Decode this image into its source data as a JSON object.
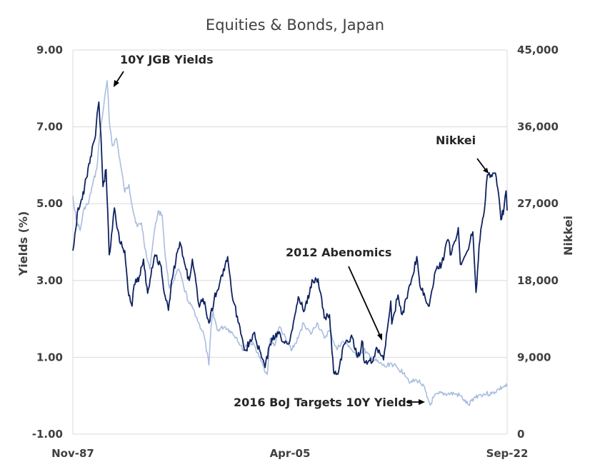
{
  "chart_data": {
    "type": "line",
    "title": "Equities & Bonds, Japan",
    "ylabel": "Yields  (%)",
    "y2label": "Nikkei",
    "ylim": [
      -1,
      9
    ],
    "y2lim": [
      0,
      45000
    ],
    "xlim": [
      "1987-11",
      "2022-09"
    ],
    "y_ticks": [
      "-1.00",
      "1.00",
      "3.00",
      "5.00",
      "7.00",
      "9.00"
    ],
    "y2_ticks": [
      "0",
      "9,000",
      "18,000",
      "27,000",
      "36,000",
      "45,000"
    ],
    "x_ticks": [
      "Nov-87",
      "Apr-05",
      "Sep-22"
    ],
    "grid": true,
    "colors": {
      "jgb": "#a9bde0",
      "nikkei": "#0e2260"
    },
    "series": [
      {
        "name": "10Y JGB Yields",
        "axis": "left",
        "points": [
          [
            "1987-11",
            5.2
          ],
          [
            "1988-02",
            4.6
          ],
          [
            "1988-06",
            4.3
          ],
          [
            "1988-10",
            4.9
          ],
          [
            "1989-02",
            5.0
          ],
          [
            "1989-06",
            5.5
          ],
          [
            "1989-10",
            5.9
          ],
          [
            "1990-01",
            6.8
          ],
          [
            "1990-04",
            7.4
          ],
          [
            "1990-08",
            8.2
          ],
          [
            "1990-10",
            7.2
          ],
          [
            "1991-01",
            6.5
          ],
          [
            "1991-05",
            6.7
          ],
          [
            "1991-09",
            6.0
          ],
          [
            "1992-01",
            5.3
          ],
          [
            "1992-05",
            5.5
          ],
          [
            "1992-09",
            4.8
          ],
          [
            "1993-01",
            4.4
          ],
          [
            "1993-05",
            4.5
          ],
          [
            "1993-10",
            3.6
          ],
          [
            "1994-01",
            3.3
          ],
          [
            "1994-05",
            4.2
          ],
          [
            "1994-09",
            4.8
          ],
          [
            "1995-01",
            4.7
          ],
          [
            "1995-04",
            3.6
          ],
          [
            "1995-08",
            2.8
          ],
          [
            "1995-12",
            3.0
          ],
          [
            "1996-05",
            3.3
          ],
          [
            "1996-10",
            2.8
          ],
          [
            "1997-03",
            2.4
          ],
          [
            "1997-08",
            2.2
          ],
          [
            "1997-12",
            1.9
          ],
          [
            "1998-05",
            1.6
          ],
          [
            "1998-10",
            0.8
          ],
          [
            "1998-12",
            1.8
          ],
          [
            "1999-02",
            2.2
          ],
          [
            "1999-06",
            1.7
          ],
          [
            "2000-01",
            1.8
          ],
          [
            "2000-06",
            1.7
          ],
          [
            "2001-01",
            1.5
          ],
          [
            "2001-06",
            1.2
          ],
          [
            "2002-01",
            1.4
          ],
          [
            "2002-06",
            1.3
          ],
          [
            "2002-12",
            0.9
          ],
          [
            "2003-06",
            0.55
          ],
          [
            "2003-09",
            1.5
          ],
          [
            "2004-01",
            1.3
          ],
          [
            "2004-06",
            1.8
          ],
          [
            "2005-01",
            1.4
          ],
          [
            "2005-06",
            1.2
          ],
          [
            "2005-12",
            1.5
          ],
          [
            "2006-05",
            1.9
          ],
          [
            "2006-12",
            1.6
          ],
          [
            "2007-06",
            1.9
          ],
          [
            "2008-01",
            1.5
          ],
          [
            "2008-06",
            1.7
          ],
          [
            "2009-01",
            1.2
          ],
          [
            "2009-06",
            1.4
          ],
          [
            "2010-01",
            1.3
          ],
          [
            "2010-08",
            1.0
          ],
          [
            "2011-03",
            1.2
          ],
          [
            "2011-09",
            1.0
          ],
          [
            "2012-06",
            0.85
          ],
          [
            "2012-12",
            0.75
          ],
          [
            "2013-05",
            0.85
          ],
          [
            "2013-12",
            0.7
          ],
          [
            "2014-06",
            0.6
          ],
          [
            "2014-12",
            0.35
          ],
          [
            "2015-06",
            0.4
          ],
          [
            "2015-12",
            0.3
          ],
          [
            "2016-04",
            -0.05
          ],
          [
            "2016-07",
            -0.25
          ],
          [
            "2016-10",
            -0.05
          ],
          [
            "2017-03",
            0.05
          ],
          [
            "2017-12",
            0.05
          ],
          [
            "2018-06",
            0.05
          ],
          [
            "2018-12",
            0.0
          ],
          [
            "2019-03",
            -0.1
          ],
          [
            "2019-08",
            -0.25
          ],
          [
            "2020-01",
            -0.05
          ],
          [
            "2020-06",
            0.02
          ],
          [
            "2021-01",
            0.05
          ],
          [
            "2021-06",
            0.05
          ],
          [
            "2022-01",
            0.17
          ],
          [
            "2022-06",
            0.24
          ],
          [
            "2022-09",
            0.25
          ]
        ]
      },
      {
        "name": "Nikkei",
        "axis": "right",
        "points": [
          [
            "1987-11",
            21500
          ],
          [
            "1988-01",
            23500
          ],
          [
            "1988-04",
            26500
          ],
          [
            "1988-08",
            27500
          ],
          [
            "1988-12",
            30000
          ],
          [
            "1989-04",
            32500
          ],
          [
            "1989-08",
            34500
          ],
          [
            "1989-12",
            38900
          ],
          [
            "1990-02",
            35000
          ],
          [
            "1990-04",
            29000
          ],
          [
            "1990-07",
            31000
          ],
          [
            "1990-10",
            21000
          ],
          [
            "1991-01",
            24000
          ],
          [
            "1991-03",
            26500
          ],
          [
            "1991-08",
            22500
          ],
          [
            "1992-01",
            21500
          ],
          [
            "1992-04",
            17000
          ],
          [
            "1992-08",
            15000
          ],
          [
            "1992-10",
            17500
          ],
          [
            "1993-03",
            18500
          ],
          [
            "1993-07",
            20500
          ],
          [
            "1993-11",
            16500
          ],
          [
            "1994-03",
            19500
          ],
          [
            "1994-06",
            21000
          ],
          [
            "1994-12",
            19700
          ],
          [
            "1995-03",
            16500
          ],
          [
            "1995-07",
            14500
          ],
          [
            "1995-10",
            18000
          ],
          [
            "1996-06",
            22500
          ],
          [
            "1996-12",
            19300
          ],
          [
            "1997-03",
            18000
          ],
          [
            "1997-06",
            20500
          ],
          [
            "1997-12",
            15300
          ],
          [
            "1998-06",
            15500
          ],
          [
            "1998-10",
            13000
          ],
          [
            "1999-03",
            15800
          ],
          [
            "1999-08",
            17500
          ],
          [
            "2000-04",
            20800
          ],
          [
            "2000-09",
            15700
          ],
          [
            "2001-03",
            13000
          ],
          [
            "2001-09",
            9800
          ],
          [
            "2002-05",
            11800
          ],
          [
            "2003-04",
            7800
          ],
          [
            "2003-08",
            10300
          ],
          [
            "2004-04",
            12000
          ],
          [
            "2004-09",
            10800
          ],
          [
            "2005-04",
            11000
          ],
          [
            "2005-12",
            16100
          ],
          [
            "2006-06",
            14500
          ],
          [
            "2007-02",
            18000
          ],
          [
            "2007-07",
            18200
          ],
          [
            "2008-01",
            13600
          ],
          [
            "2008-06",
            14000
          ],
          [
            "2008-10",
            7200
          ],
          [
            "2009-03",
            7500
          ],
          [
            "2009-08",
            10500
          ],
          [
            "2010-04",
            11300
          ],
          [
            "2010-09",
            9000
          ],
          [
            "2011-02",
            10800
          ],
          [
            "2011-03",
            8700
          ],
          [
            "2011-11",
            8400
          ],
          [
            "2012-04",
            10000
          ],
          [
            "2012-10",
            8700
          ],
          [
            "2012-12",
            10400
          ],
          [
            "2013-05",
            15600
          ],
          [
            "2013-06",
            12900
          ],
          [
            "2013-12",
            16300
          ],
          [
            "2014-04",
            14000
          ],
          [
            "2014-12",
            17500
          ],
          [
            "2015-06",
            20800
          ],
          [
            "2015-09",
            17400
          ],
          [
            "2016-02",
            16000
          ],
          [
            "2016-06",
            15000
          ],
          [
            "2016-12",
            19100
          ],
          [
            "2017-06",
            20000
          ],
          [
            "2017-12",
            22800
          ],
          [
            "2018-03",
            21000
          ],
          [
            "2018-10",
            24200
          ],
          [
            "2018-12",
            19900
          ],
          [
            "2019-06",
            21300
          ],
          [
            "2019-12",
            23700
          ],
          [
            "2020-03",
            16600
          ],
          [
            "2020-06",
            22000
          ],
          [
            "2020-12",
            27400
          ],
          [
            "2021-02",
            30400
          ],
          [
            "2021-09",
            30600
          ],
          [
            "2021-12",
            28800
          ],
          [
            "2022-03",
            25100
          ],
          [
            "2022-06",
            26500
          ],
          [
            "2022-08",
            28500
          ],
          [
            "2022-09",
            26200
          ]
        ]
      }
    ],
    "annotations": [
      "10Y JGB Yields",
      "Nikkei",
      "2012 Abenomics",
      "2016 BoJ Targets 10Y Yields"
    ]
  }
}
